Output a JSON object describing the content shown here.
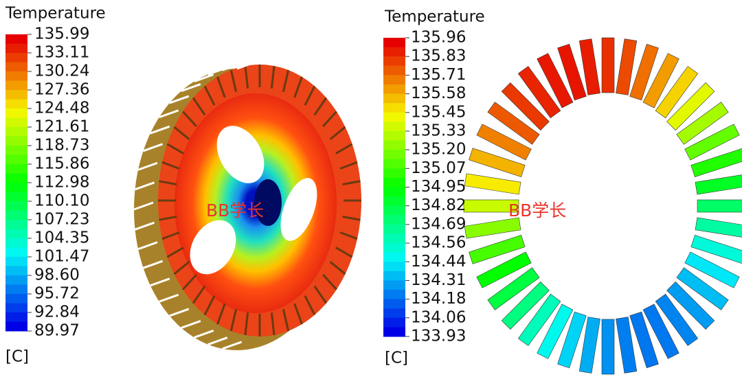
{
  "panels": [
    {
      "legend": {
        "title": "Temperature",
        "labels": [
          "135.99",
          "133.11",
          "130.24",
          "127.36",
          "124.48",
          "121.61",
          "118.73",
          "115.86",
          "112.98",
          "110.10",
          "107.23",
          "104.35",
          "101.47",
          "98.60",
          "95.72",
          "92.84",
          "89.97"
        ],
        "unit": "[C]"
      },
      "watermark": "BB学长"
    },
    {
      "legend": {
        "title": "Temperature",
        "labels": [
          "135.96",
          "135.83",
          "135.71",
          "135.58",
          "135.45",
          "135.33",
          "135.20",
          "135.07",
          "134.95",
          "134.82",
          "134.69",
          "134.56",
          "134.44",
          "134.31",
          "134.18",
          "134.06",
          "133.93"
        ],
        "unit": "[C]"
      },
      "watermark": "BB学长"
    }
  ]
}
